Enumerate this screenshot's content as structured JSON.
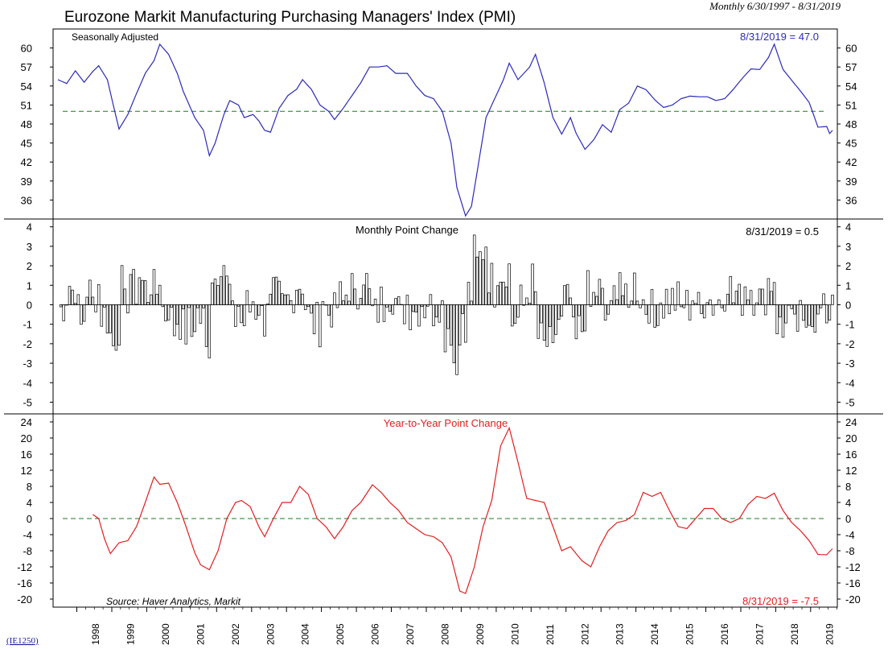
{
  "header": {
    "title": "Eurozone Markit Manufacturing Purchasing Managers' Index (PMI)",
    "date_range": "Monthly 6/30/1997 - 8/31/2019"
  },
  "footer": {
    "source": "Source: Haver Analytics, Markit",
    "code": "(IE1250)"
  },
  "colors": {
    "level_line": "#2b2bb8",
    "yoy_line": "#e02020",
    "reference_line": "#1f7a1f",
    "bars": "#000000"
  },
  "chart_data": [
    {
      "type": "line",
      "subtitle": "Seasonally Adjusted",
      "annotation": "8/31/2019 = 47.0",
      "ylim": [
        33,
        63
      ],
      "yticks": [
        60,
        57,
        54,
        51,
        48,
        45,
        42,
        39,
        36
      ],
      "reference_line": 50,
      "x_start": "1997-06",
      "x_end": "2019-08",
      "series": [
        {
          "keypoints": [
            [
              "1997-06",
              55.0
            ],
            [
              "1997-09",
              54.4
            ],
            [
              "1997-12",
              56.4
            ],
            [
              "1998-03",
              54.6
            ],
            [
              "1998-06",
              56.3
            ],
            [
              "1998-08",
              57.2
            ],
            [
              "1998-11",
              55.0
            ],
            [
              "1999-01",
              51.0
            ],
            [
              "1999-03",
              47.2
            ],
            [
              "1999-06",
              49.5
            ],
            [
              "1999-09",
              52.8
            ],
            [
              "1999-12",
              56.0
            ],
            [
              "2000-03",
              58.0
            ],
            [
              "2000-05",
              60.6
            ],
            [
              "2000-08",
              59.0
            ],
            [
              "2000-11",
              56.0
            ],
            [
              "2001-01",
              53.2
            ],
            [
              "2001-05",
              49.0
            ],
            [
              "2001-08",
              47.0
            ],
            [
              "2001-10",
              43.0
            ],
            [
              "2001-12",
              45.0
            ],
            [
              "2002-03",
              49.5
            ],
            [
              "2002-05",
              51.7
            ],
            [
              "2002-08",
              51.0
            ],
            [
              "2002-10",
              49.0
            ],
            [
              "2003-01",
              49.5
            ],
            [
              "2003-03",
              48.5
            ],
            [
              "2003-05",
              47.0
            ],
            [
              "2003-07",
              46.7
            ],
            [
              "2003-10",
              50.5
            ],
            [
              "2004-01",
              52.5
            ],
            [
              "2004-04",
              53.5
            ],
            [
              "2004-06",
              55.0
            ],
            [
              "2004-09",
              53.5
            ],
            [
              "2004-12",
              51.0
            ],
            [
              "2005-03",
              50.0
            ],
            [
              "2005-05",
              48.7
            ],
            [
              "2005-08",
              50.5
            ],
            [
              "2005-11",
              52.5
            ],
            [
              "2006-02",
              54.5
            ],
            [
              "2006-05",
              57.0
            ],
            [
              "2006-08",
              57.0
            ],
            [
              "2006-11",
              57.2
            ],
            [
              "2007-02",
              56.0
            ],
            [
              "2007-06",
              56.0
            ],
            [
              "2007-09",
              54.0
            ],
            [
              "2007-12",
              52.5
            ],
            [
              "2008-03",
              52.0
            ],
            [
              "2008-06",
              50.0
            ],
            [
              "2008-09",
              45.0
            ],
            [
              "2008-11",
              38.0
            ],
            [
              "2009-02",
              33.5
            ],
            [
              "2009-04",
              35.0
            ],
            [
              "2009-06",
              40.5
            ],
            [
              "2009-09",
              49.0
            ],
            [
              "2009-12",
              52.0
            ],
            [
              "2010-03",
              55.0
            ],
            [
              "2010-05",
              57.6
            ],
            [
              "2010-08",
              55.0
            ],
            [
              "2010-12",
              57.0
            ],
            [
              "2011-02",
              59.0
            ],
            [
              "2011-05",
              54.5
            ],
            [
              "2011-08",
              49.0
            ],
            [
              "2011-11",
              46.4
            ],
            [
              "2012-02",
              49.0
            ],
            [
              "2012-04",
              46.5
            ],
            [
              "2012-07",
              44.0
            ],
            [
              "2012-10",
              45.5
            ],
            [
              "2013-01",
              47.9
            ],
            [
              "2013-04",
              46.7
            ],
            [
              "2013-07",
              50.3
            ],
            [
              "2013-10",
              51.3
            ],
            [
              "2014-01",
              54.0
            ],
            [
              "2014-04",
              53.4
            ],
            [
              "2014-07",
              51.8
            ],
            [
              "2014-10",
              50.6
            ],
            [
              "2015-01",
              51.0
            ],
            [
              "2015-04",
              52.0
            ],
            [
              "2015-07",
              52.4
            ],
            [
              "2015-10",
              52.3
            ],
            [
              "2016-01",
              52.3
            ],
            [
              "2016-04",
              51.7
            ],
            [
              "2016-07",
              52.0
            ],
            [
              "2016-10",
              53.5
            ],
            [
              "2017-01",
              55.2
            ],
            [
              "2017-04",
              56.7
            ],
            [
              "2017-07",
              56.6
            ],
            [
              "2017-10",
              58.5
            ],
            [
              "2017-12",
              60.6
            ],
            [
              "2018-03",
              56.6
            ],
            [
              "2018-06",
              54.9
            ],
            [
              "2018-09",
              53.2
            ],
            [
              "2018-12",
              51.4
            ],
            [
              "2019-03",
              47.5
            ],
            [
              "2019-06",
              47.6
            ],
            [
              "2019-07",
              46.5
            ],
            [
              "2019-08",
              47.0
            ]
          ]
        }
      ]
    },
    {
      "type": "bar",
      "subtitle": "Monthly Point Change",
      "annotation": "8/31/2019 = 0.5",
      "ylim": [
        -5.6,
        4.4
      ],
      "yticks": [
        4,
        3,
        2,
        1,
        0,
        -1,
        -2,
        -3,
        -4,
        -5
      ],
      "ytick_labels": [
        "4",
        "3",
        "2",
        "1",
        "0",
        "-1",
        "-2",
        "-3",
        "-4",
        "-5"
      ],
      "x_start": "1997-07",
      "x_end": "2019-08",
      "derived_from": "month-over-month change of the Seasonally Adjusted index"
    },
    {
      "type": "line",
      "subtitle": "Year-to-Year Point Change",
      "annotation": "8/31/2019 = -7.5",
      "ylim": [
        -22,
        26
      ],
      "yticks": [
        24,
        20,
        16,
        12,
        8,
        4,
        0,
        -4,
        -8,
        -12,
        -16,
        -20
      ],
      "ytick_labels": [
        "24",
        "20",
        "16",
        "12",
        "8",
        "4",
        "0",
        "-4",
        "-8",
        "-12",
        "-16",
        "-20"
      ],
      "reference_line": 0,
      "x_start": "1998-06",
      "x_end": "2019-08",
      "series": [
        {
          "keypoints": [
            [
              "1998-06",
              1.0
            ],
            [
              "1998-08",
              0.0
            ],
            [
              "1998-10",
              -5.0
            ],
            [
              "1998-12",
              -8.7
            ],
            [
              "1999-03",
              -6.0
            ],
            [
              "1999-06",
              -5.5
            ],
            [
              "1999-09",
              -2.0
            ],
            [
              "1999-12",
              4.0
            ],
            [
              "2000-03",
              10.3
            ],
            [
              "2000-05",
              8.5
            ],
            [
              "2000-08",
              8.8
            ],
            [
              "2000-11",
              4.0
            ],
            [
              "2001-02",
              -2.0
            ],
            [
              "2001-05",
              -8.5
            ],
            [
              "2001-07",
              -11.5
            ],
            [
              "2001-10",
              -12.7
            ],
            [
              "2002-01",
              -8.0
            ],
            [
              "2002-04",
              0.0
            ],
            [
              "2002-07",
              4.0
            ],
            [
              "2002-09",
              4.5
            ],
            [
              "2002-12",
              3.0
            ],
            [
              "2003-03",
              -2.0
            ],
            [
              "2003-05",
              -4.5
            ],
            [
              "2003-08",
              0.0
            ],
            [
              "2003-11",
              4.0
            ],
            [
              "2004-02",
              4.0
            ],
            [
              "2004-05",
              8.0
            ],
            [
              "2004-08",
              6.0
            ],
            [
              "2004-11",
              0.0
            ],
            [
              "2005-02",
              -2.0
            ],
            [
              "2005-05",
              -5.0
            ],
            [
              "2005-08",
              -2.0
            ],
            [
              "2005-11",
              2.0
            ],
            [
              "2006-02",
              4.0
            ],
            [
              "2006-06",
              8.4
            ],
            [
              "2006-09",
              6.5
            ],
            [
              "2006-12",
              4.0
            ],
            [
              "2007-03",
              2.0
            ],
            [
              "2007-06",
              -1.0
            ],
            [
              "2007-09",
              -2.5
            ],
            [
              "2007-12",
              -4.0
            ],
            [
              "2008-03",
              -4.5
            ],
            [
              "2008-06",
              -6.0
            ],
            [
              "2008-09",
              -9.5
            ],
            [
              "2008-12",
              -18.0
            ],
            [
              "2009-02",
              -18.6
            ],
            [
              "2009-05",
              -12.0
            ],
            [
              "2009-08",
              -2.0
            ],
            [
              "2009-11",
              4.5
            ],
            [
              "2010-02",
              18.0
            ],
            [
              "2010-05",
              22.5
            ],
            [
              "2010-08",
              14.0
            ],
            [
              "2010-11",
              5.0
            ],
            [
              "2011-02",
              4.5
            ],
            [
              "2011-05",
              4.0
            ],
            [
              "2011-08",
              -2.0
            ],
            [
              "2011-11",
              -8.0
            ],
            [
              "2012-02",
              -7.0
            ],
            [
              "2012-06",
              -10.5
            ],
            [
              "2012-09",
              -12.0
            ],
            [
              "2012-12",
              -7.0
            ],
            [
              "2013-03",
              -3.0
            ],
            [
              "2013-06",
              -1.0
            ],
            [
              "2013-09",
              -0.5
            ],
            [
              "2013-12",
              1.0
            ],
            [
              "2014-03",
              6.5
            ],
            [
              "2014-06",
              5.5
            ],
            [
              "2014-09",
              6.5
            ],
            [
              "2014-12",
              2.0
            ],
            [
              "2015-03",
              -2.0
            ],
            [
              "2015-06",
              -2.5
            ],
            [
              "2015-09",
              0.0
            ],
            [
              "2015-12",
              2.5
            ],
            [
              "2016-03",
              2.5
            ],
            [
              "2016-06",
              0.0
            ],
            [
              "2016-09",
              -1.0
            ],
            [
              "2016-12",
              0.0
            ],
            [
              "2017-03",
              3.5
            ],
            [
              "2017-06",
              5.5
            ],
            [
              "2017-09",
              5.0
            ],
            [
              "2017-12",
              6.3
            ],
            [
              "2018-03",
              2.0
            ],
            [
              "2018-06",
              -1.0
            ],
            [
              "2018-09",
              -3.0
            ],
            [
              "2018-12",
              -5.5
            ],
            [
              "2019-03",
              -8.9
            ],
            [
              "2019-06",
              -9.0
            ],
            [
              "2019-07",
              -8.2
            ],
            [
              "2019-08",
              -7.5
            ]
          ]
        }
      ]
    }
  ],
  "x_axis": {
    "years": [
      "1998",
      "1999",
      "2000",
      "2001",
      "2002",
      "2003",
      "2004",
      "2005",
      "2006",
      "2007",
      "2008",
      "2009",
      "2010",
      "2011",
      "2012",
      "2013",
      "2014",
      "2015",
      "2016",
      "2017",
      "2018",
      "2019"
    ]
  }
}
